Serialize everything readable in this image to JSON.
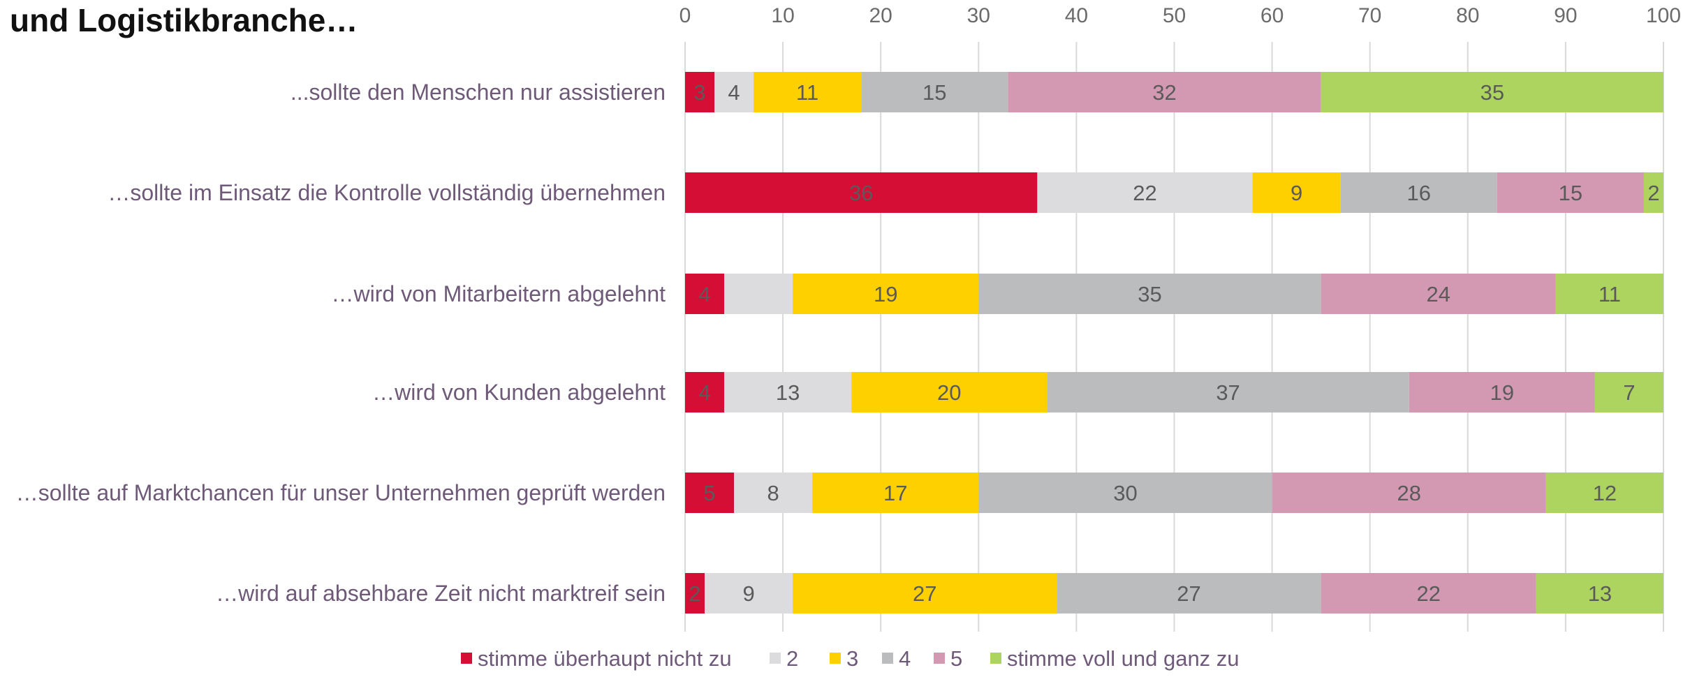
{
  "page_title": "und Logistikbranche…",
  "chart_data": {
    "type": "bar",
    "orientation": "horizontal",
    "stacked": true,
    "title": "und Logistikbranche…",
    "xlim": [
      0,
      100
    ],
    "xticks": [
      0,
      10,
      20,
      30,
      40,
      50,
      60,
      70,
      80,
      90,
      100
    ],
    "grid": true,
    "legend_position": "bottom",
    "categories": [
      "...sollte den Menschen nur assistieren",
      "…sollte im Einsatz die Kontrolle vollständig übernehmen",
      "…wird von Mitarbeitern abgelehnt",
      "…wird von Kunden abgelehnt",
      "…sollte auf Marktchancen für unser Unternehmen geprüft werden",
      "…wird auf absehbare Zeit nicht marktreif sein"
    ],
    "series": [
      {
        "name": "stimme überhaupt nicht zu",
        "color": "#d40e34",
        "values": [
          3,
          36,
          4,
          4,
          5,
          2
        ]
      },
      {
        "name": "2",
        "color": "#dcdcde",
        "values": [
          4,
          22,
          7,
          13,
          8,
          9
        ]
      },
      {
        "name": "3",
        "color": "#ffd000",
        "values": [
          11,
          9,
          19,
          20,
          17,
          27
        ]
      },
      {
        "name": "4",
        "color": "#bbbcbe",
        "values": [
          15,
          16,
          35,
          37,
          30,
          27
        ]
      },
      {
        "name": "5",
        "color": "#d499b2",
        "values": [
          32,
          15,
          24,
          19,
          28,
          22
        ]
      },
      {
        "name": "stimme voll und ganz zu",
        "color": "#aed460",
        "values": [
          35,
          2,
          11,
          7,
          12,
          13
        ]
      }
    ],
    "data_labels": [
      [
        "3",
        "4",
        "11",
        "15",
        "32",
        "35"
      ],
      [
        "36",
        "22",
        "9",
        "16",
        "15",
        "2"
      ],
      [
        "4",
        "",
        "19",
        "35",
        "24",
        "11"
      ],
      [
        "4",
        "13",
        "20",
        "37",
        "19",
        "7"
      ],
      [
        "5",
        "8",
        "17",
        "30",
        "28",
        "12"
      ],
      [
        "2",
        "9",
        "27",
        "27",
        "22",
        "13"
      ]
    ]
  }
}
